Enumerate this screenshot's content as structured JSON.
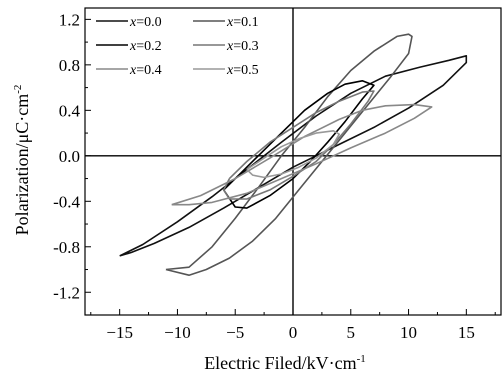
{
  "chart_data": {
    "type": "line",
    "title": "",
    "xlabel": "Electric Filed/kV·cm",
    "xlabel_sup": "-1",
    "ylabel": "Polarization/μC·cm",
    "ylabel_sup": "-2",
    "xlim": [
      -18,
      18
    ],
    "ylim": [
      -1.4,
      1.3
    ],
    "x_ticks": [
      -15,
      -10,
      -5,
      0,
      5,
      10,
      15
    ],
    "x_tick_labels": [
      "−15",
      "−10",
      "−5",
      "0",
      "5",
      "10",
      "15"
    ],
    "y_ticks": [
      1.2,
      0.8,
      0.4,
      0.0,
      -0.4,
      -0.8,
      -1.2
    ],
    "y_tick_labels": [
      "1.2",
      "0.8",
      "0.4",
      "0.0",
      "-0.4",
      "-0.8",
      "-1.2"
    ],
    "grid": false,
    "zero_lines": true,
    "legend_position": "top-left",
    "legend_columns": 2,
    "series": [
      {
        "name": "x=0.0",
        "legend_var": "x",
        "legend_value": "=0.0",
        "color": "#111111",
        "points": [
          [
            -15.0,
            -0.88
          ],
          [
            -13.0,
            -0.78
          ],
          [
            -10.0,
            -0.58
          ],
          [
            -7.0,
            -0.36
          ],
          [
            -4.0,
            -0.12
          ],
          [
            -1.0,
            0.12
          ],
          [
            2.0,
            0.35
          ],
          [
            5.0,
            0.55
          ],
          [
            8.0,
            0.7
          ],
          [
            11.0,
            0.78
          ],
          [
            13.5,
            0.84
          ],
          [
            15.0,
            0.88
          ],
          [
            15.0,
            0.82
          ],
          [
            13.0,
            0.62
          ],
          [
            10.0,
            0.42
          ],
          [
            7.0,
            0.25
          ],
          [
            4.0,
            0.1
          ],
          [
            2.0,
            0.0
          ],
          [
            0.0,
            -0.1
          ],
          [
            -3.0,
            -0.28
          ],
          [
            -6.0,
            -0.46
          ],
          [
            -9.0,
            -0.63
          ],
          [
            -12.0,
            -0.77
          ],
          [
            -14.0,
            -0.85
          ],
          [
            -15.0,
            -0.88
          ]
        ]
      },
      {
        "name": "x=0.1",
        "legend_var": "x",
        "legend_value": "=0.1",
        "color": "#555555",
        "points": [
          [
            -11.0,
            -1.0
          ],
          [
            -9.0,
            -0.98
          ],
          [
            -7.0,
            -0.8
          ],
          [
            -5.0,
            -0.55
          ],
          [
            -3.0,
            -0.28
          ],
          [
            -1.0,
            0.0
          ],
          [
            1.0,
            0.25
          ],
          [
            3.0,
            0.52
          ],
          [
            5.0,
            0.75
          ],
          [
            7.0,
            0.92
          ],
          [
            9.0,
            1.05
          ],
          [
            10.0,
            1.07
          ],
          [
            10.3,
            1.05
          ],
          [
            10.0,
            0.9
          ],
          [
            8.5,
            0.7
          ],
          [
            6.5,
            0.45
          ],
          [
            4.5,
            0.2
          ],
          [
            2.5,
            -0.05
          ],
          [
            0.5,
            -0.3
          ],
          [
            -1.5,
            -0.55
          ],
          [
            -3.5,
            -0.75
          ],
          [
            -5.5,
            -0.9
          ],
          [
            -7.5,
            -1.0
          ],
          [
            -9.0,
            -1.05
          ],
          [
            -11.0,
            -1.0
          ]
        ]
      },
      {
        "name": "x=0.2",
        "legend_var": "x",
        "legend_value": "=0.2",
        "color": "#000000",
        "points": [
          [
            -6.0,
            -0.3
          ],
          [
            -4.5,
            -0.15
          ],
          [
            -3.0,
            0.0
          ],
          [
            -1.0,
            0.2
          ],
          [
            1.0,
            0.4
          ],
          [
            3.0,
            0.55
          ],
          [
            4.5,
            0.63
          ],
          [
            6.0,
            0.66
          ],
          [
            7.0,
            0.62
          ],
          [
            6.0,
            0.5
          ],
          [
            4.5,
            0.3
          ],
          [
            3.0,
            0.12
          ],
          [
            1.5,
            -0.05
          ],
          [
            0.0,
            -0.2
          ],
          [
            -2.0,
            -0.35
          ],
          [
            -4.0,
            -0.46
          ],
          [
            -5.0,
            -0.45
          ],
          [
            -6.0,
            -0.3
          ]
        ]
      },
      {
        "name": "x=0.3",
        "legend_var": "x",
        "legend_value": "=0.3",
        "color": "#777777",
        "points": [
          [
            -5.5,
            -0.2
          ],
          [
            -4.0,
            -0.05
          ],
          [
            -2.0,
            0.12
          ],
          [
            0.0,
            0.25
          ],
          [
            2.0,
            0.38
          ],
          [
            4.0,
            0.48
          ],
          [
            6.0,
            0.56
          ],
          [
            7.0,
            0.57
          ],
          [
            6.5,
            0.48
          ],
          [
            5.0,
            0.28
          ],
          [
            3.5,
            0.1
          ],
          [
            2.0,
            -0.05
          ],
          [
            0.0,
            -0.18
          ],
          [
            -2.0,
            -0.3
          ],
          [
            -4.0,
            -0.38
          ],
          [
            -5.5,
            -0.38
          ],
          [
            -6.0,
            -0.3
          ],
          [
            -5.5,
            -0.2
          ]
        ]
      },
      {
        "name": "x=0.4",
        "legend_var": "x",
        "legend_value": "=0.4",
        "color": "#888888",
        "points": [
          [
            -10.5,
            -0.43
          ],
          [
            -8.0,
            -0.35
          ],
          [
            -5.0,
            -0.2
          ],
          [
            -2.0,
            -0.02
          ],
          [
            1.0,
            0.17
          ],
          [
            4.0,
            0.32
          ],
          [
            6.0,
            0.4
          ],
          [
            8.0,
            0.44
          ],
          [
            10.5,
            0.45
          ],
          [
            12.0,
            0.43
          ],
          [
            10.5,
            0.33
          ],
          [
            8.0,
            0.2
          ],
          [
            5.0,
            0.07
          ],
          [
            2.0,
            -0.07
          ],
          [
            -1.0,
            -0.2
          ],
          [
            -4.0,
            -0.33
          ],
          [
            -7.0,
            -0.41
          ],
          [
            -9.0,
            -0.43
          ],
          [
            -10.5,
            -0.43
          ]
        ]
      },
      {
        "name": "x=0.5",
        "legend_var": "x",
        "legend_value": "=0.5",
        "color": "#999999",
        "points": [
          [
            -4.0,
            -0.12
          ],
          [
            -2.5,
            -0.02
          ],
          [
            -1.0,
            0.08
          ],
          [
            0.5,
            0.15
          ],
          [
            2.0,
            0.2
          ],
          [
            3.5,
            0.22
          ],
          [
            4.0,
            0.19
          ],
          [
            3.5,
            0.1
          ],
          [
            2.0,
            -0.02
          ],
          [
            0.5,
            -0.1
          ],
          [
            -1.0,
            -0.16
          ],
          [
            -2.5,
            -0.19
          ],
          [
            -3.5,
            -0.17
          ],
          [
            -4.0,
            -0.12
          ]
        ]
      }
    ]
  }
}
